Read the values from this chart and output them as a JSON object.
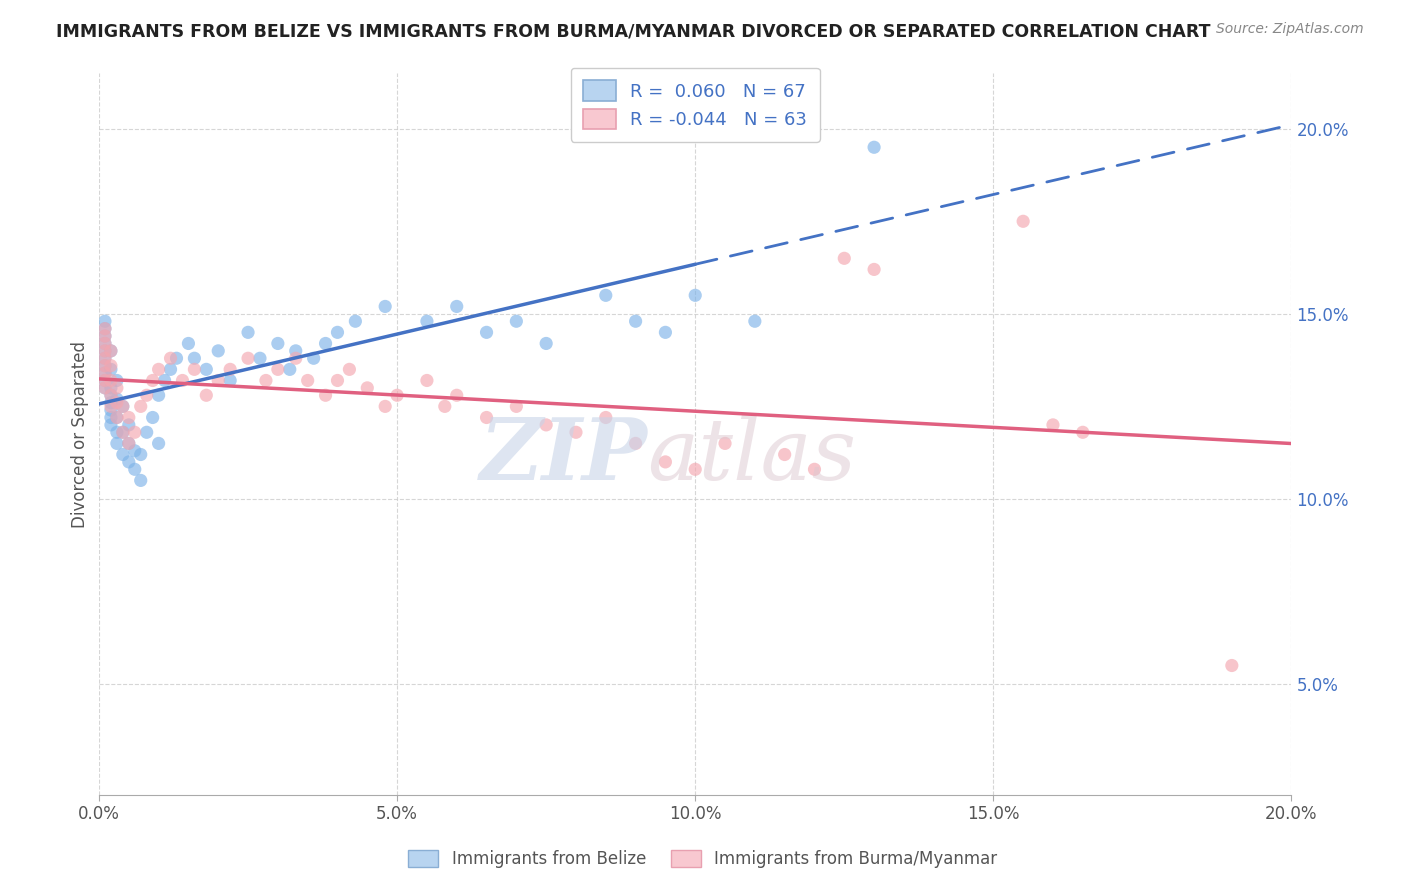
{
  "title": "IMMIGRANTS FROM BELIZE VS IMMIGRANTS FROM BURMA/MYANMAR DIVORCED OR SEPARATED CORRELATION CHART",
  "source": "Source: ZipAtlas.com",
  "ylabel": "Divorced or Separated",
  "legend_belize": "Immigrants from Belize",
  "legend_burma": "Immigrants from Burma/Myanmar",
  "r_belize": 0.06,
  "n_belize": 67,
  "r_burma": -0.044,
  "n_burma": 63,
  "x_range": [
    0.0,
    0.2
  ],
  "y_range": [
    0.02,
    0.215
  ],
  "x_tick_vals": [
    0.0,
    0.05,
    0.1,
    0.15,
    0.2
  ],
  "y_tick_vals": [
    0.05,
    0.1,
    0.15,
    0.2
  ],
  "color_belize": "#7EB3E8",
  "color_burma": "#F4A7B0",
  "line_color_belize": "#4472C4",
  "line_color_burma": "#E06080",
  "legend_patch_belize": "#B8D4F0",
  "legend_patch_burma": "#F8C8D0",
  "belize_x": [
    0.001,
    0.001,
    0.001,
    0.001,
    0.001,
    0.001,
    0.001,
    0.001,
    0.001,
    0.001,
    0.002,
    0.002,
    0.002,
    0.002,
    0.002,
    0.002,
    0.002,
    0.002,
    0.003,
    0.003,
    0.003,
    0.003,
    0.003,
    0.004,
    0.004,
    0.004,
    0.005,
    0.005,
    0.005,
    0.006,
    0.006,
    0.007,
    0.007,
    0.008,
    0.009,
    0.01,
    0.01,
    0.011,
    0.012,
    0.013,
    0.015,
    0.016,
    0.018,
    0.02,
    0.022,
    0.025,
    0.027,
    0.03,
    0.032,
    0.033,
    0.036,
    0.038,
    0.04,
    0.043,
    0.048,
    0.055,
    0.06,
    0.065,
    0.07,
    0.075,
    0.085,
    0.09,
    0.095,
    0.1,
    0.11,
    0.12,
    0.13
  ],
  "belize_y": [
    0.13,
    0.132,
    0.134,
    0.136,
    0.138,
    0.14,
    0.142,
    0.144,
    0.146,
    0.148,
    0.12,
    0.122,
    0.124,
    0.126,
    0.128,
    0.13,
    0.135,
    0.14,
    0.115,
    0.118,
    0.122,
    0.127,
    0.132,
    0.112,
    0.118,
    0.125,
    0.11,
    0.115,
    0.12,
    0.108,
    0.113,
    0.105,
    0.112,
    0.118,
    0.122,
    0.115,
    0.128,
    0.132,
    0.135,
    0.138,
    0.142,
    0.138,
    0.135,
    0.14,
    0.132,
    0.145,
    0.138,
    0.142,
    0.135,
    0.14,
    0.138,
    0.142,
    0.145,
    0.148,
    0.152,
    0.148,
    0.152,
    0.145,
    0.148,
    0.142,
    0.155,
    0.148,
    0.145,
    0.155,
    0.148,
    0.2,
    0.195
  ],
  "burma_x": [
    0.001,
    0.001,
    0.001,
    0.001,
    0.001,
    0.001,
    0.001,
    0.001,
    0.001,
    0.002,
    0.002,
    0.002,
    0.002,
    0.002,
    0.003,
    0.003,
    0.003,
    0.004,
    0.004,
    0.005,
    0.005,
    0.006,
    0.007,
    0.008,
    0.009,
    0.01,
    0.012,
    0.014,
    0.016,
    0.018,
    0.02,
    0.022,
    0.025,
    0.028,
    0.03,
    0.033,
    0.035,
    0.038,
    0.04,
    0.042,
    0.045,
    0.048,
    0.05,
    0.055,
    0.058,
    0.06,
    0.065,
    0.07,
    0.075,
    0.08,
    0.085,
    0.09,
    0.095,
    0.1,
    0.105,
    0.115,
    0.12,
    0.125,
    0.13,
    0.155,
    0.16,
    0.165,
    0.19
  ],
  "burma_y": [
    0.13,
    0.132,
    0.134,
    0.136,
    0.138,
    0.14,
    0.142,
    0.144,
    0.146,
    0.125,
    0.128,
    0.132,
    0.136,
    0.14,
    0.122,
    0.126,
    0.13,
    0.118,
    0.125,
    0.115,
    0.122,
    0.118,
    0.125,
    0.128,
    0.132,
    0.135,
    0.138,
    0.132,
    0.135,
    0.128,
    0.132,
    0.135,
    0.138,
    0.132,
    0.135,
    0.138,
    0.132,
    0.128,
    0.132,
    0.135,
    0.13,
    0.125,
    0.128,
    0.132,
    0.125,
    0.128,
    0.122,
    0.125,
    0.12,
    0.118,
    0.122,
    0.115,
    0.11,
    0.108,
    0.115,
    0.112,
    0.108,
    0.165,
    0.162,
    0.175,
    0.12,
    0.118,
    0.055
  ]
}
